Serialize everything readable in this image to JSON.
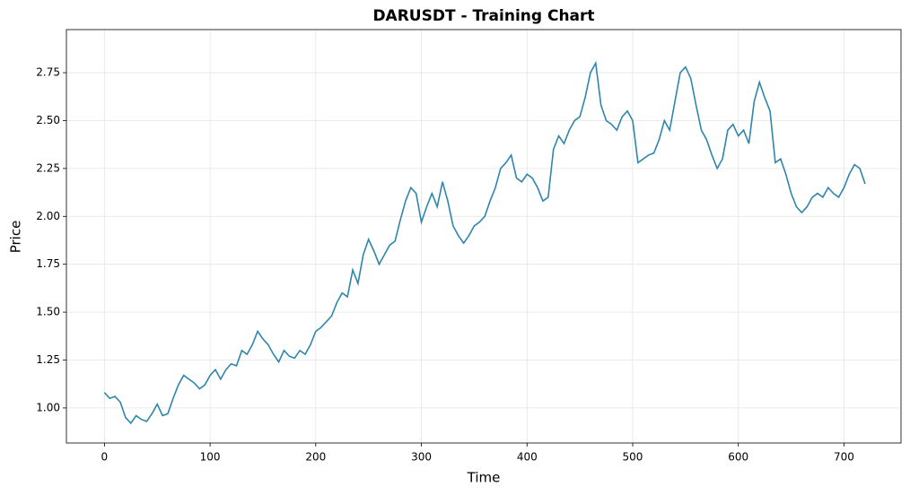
{
  "chart_data": {
    "type": "line",
    "title": "DARUSDT - Training Chart",
    "x_label": "Time",
    "y_label": "Price",
    "x": [
      0,
      5,
      10,
      15,
      20,
      25,
      30,
      35,
      40,
      45,
      50,
      55,
      60,
      65,
      70,
      75,
      80,
      85,
      90,
      95,
      100,
      105,
      110,
      115,
      120,
      125,
      130,
      135,
      140,
      145,
      150,
      155,
      160,
      165,
      170,
      175,
      180,
      185,
      190,
      195,
      200,
      205,
      210,
      215,
      220,
      225,
      230,
      235,
      240,
      245,
      250,
      255,
      260,
      265,
      270,
      275,
      280,
      285,
      290,
      295,
      300,
      305,
      310,
      315,
      320,
      325,
      330,
      335,
      340,
      345,
      350,
      355,
      360,
      365,
      370,
      375,
      380,
      385,
      390,
      395,
      400,
      405,
      410,
      415,
      420,
      425,
      430,
      435,
      440,
      445,
      450,
      455,
      460,
      465,
      470,
      475,
      480,
      485,
      490,
      495,
      500,
      505,
      510,
      515,
      520,
      525,
      530,
      535,
      540,
      545,
      550,
      555,
      560,
      565,
      570,
      575,
      580,
      585,
      590,
      595,
      600,
      605,
      610,
      615,
      620,
      625,
      630,
      635,
      640,
      645,
      650,
      655,
      660,
      665,
      670,
      675,
      680,
      685,
      690,
      695,
      700,
      705,
      710,
      715,
      720
    ],
    "series": [
      {
        "name": "DARUSDT",
        "color": "#2e86ab",
        "values": [
          1.08,
          1.05,
          1.06,
          1.03,
          0.95,
          0.92,
          0.96,
          0.94,
          0.93,
          0.97,
          1.02,
          0.96,
          0.97,
          1.05,
          1.12,
          1.17,
          1.15,
          1.13,
          1.1,
          1.12,
          1.17,
          1.2,
          1.15,
          1.2,
          1.23,
          1.22,
          1.3,
          1.28,
          1.33,
          1.4,
          1.36,
          1.33,
          1.28,
          1.24,
          1.3,
          1.27,
          1.26,
          1.3,
          1.28,
          1.33,
          1.4,
          1.42,
          1.45,
          1.48,
          1.55,
          1.6,
          1.58,
          1.72,
          1.65,
          1.8,
          1.88,
          1.82,
          1.75,
          1.8,
          1.85,
          1.87,
          1.98,
          2.08,
          2.15,
          2.12,
          1.97,
          2.05,
          2.12,
          2.05,
          2.18,
          2.08,
          1.95,
          1.9,
          1.86,
          1.9,
          1.95,
          1.97,
          2.0,
          2.08,
          2.15,
          2.25,
          2.28,
          2.32,
          2.2,
          2.18,
          2.22,
          2.2,
          2.15,
          2.08,
          2.1,
          2.35,
          2.42,
          2.38,
          2.45,
          2.5,
          2.52,
          2.62,
          2.75,
          2.8,
          2.58,
          2.5,
          2.48,
          2.45,
          2.52,
          2.55,
          2.5,
          2.28,
          2.3,
          2.32,
          2.33,
          2.4,
          2.5,
          2.45,
          2.6,
          2.75,
          2.78,
          2.72,
          2.58,
          2.45,
          2.4,
          2.32,
          2.25,
          2.3,
          2.45,
          2.48,
          2.42,
          2.45,
          2.38,
          2.6,
          2.7,
          2.62,
          2.55,
          2.28,
          2.3,
          2.22,
          2.12,
          2.05,
          2.02,
          2.05,
          2.1,
          2.12,
          2.1,
          2.15,
          2.12,
          2.1,
          2.15,
          2.22,
          2.27,
          2.25,
          2.17
        ]
      }
    ],
    "xlim": [
      -36,
      754
    ],
    "ylim": [
      0.817,
      2.975
    ],
    "xticks": [
      0,
      100,
      200,
      300,
      400,
      500,
      600,
      700
    ],
    "yticks": [
      {
        "value": 1,
        "label": "1.00"
      },
      {
        "value": 1.25,
        "label": "1.25"
      },
      {
        "value": 1.5,
        "label": "1.50"
      },
      {
        "value": 1.75,
        "label": "1.75"
      },
      {
        "value": 2,
        "label": "2.00"
      },
      {
        "value": 2.25,
        "label": "2.25"
      },
      {
        "value": 2.5,
        "label": "2.50"
      },
      {
        "value": 2.75,
        "label": "2.75"
      }
    ],
    "grid": true
  }
}
